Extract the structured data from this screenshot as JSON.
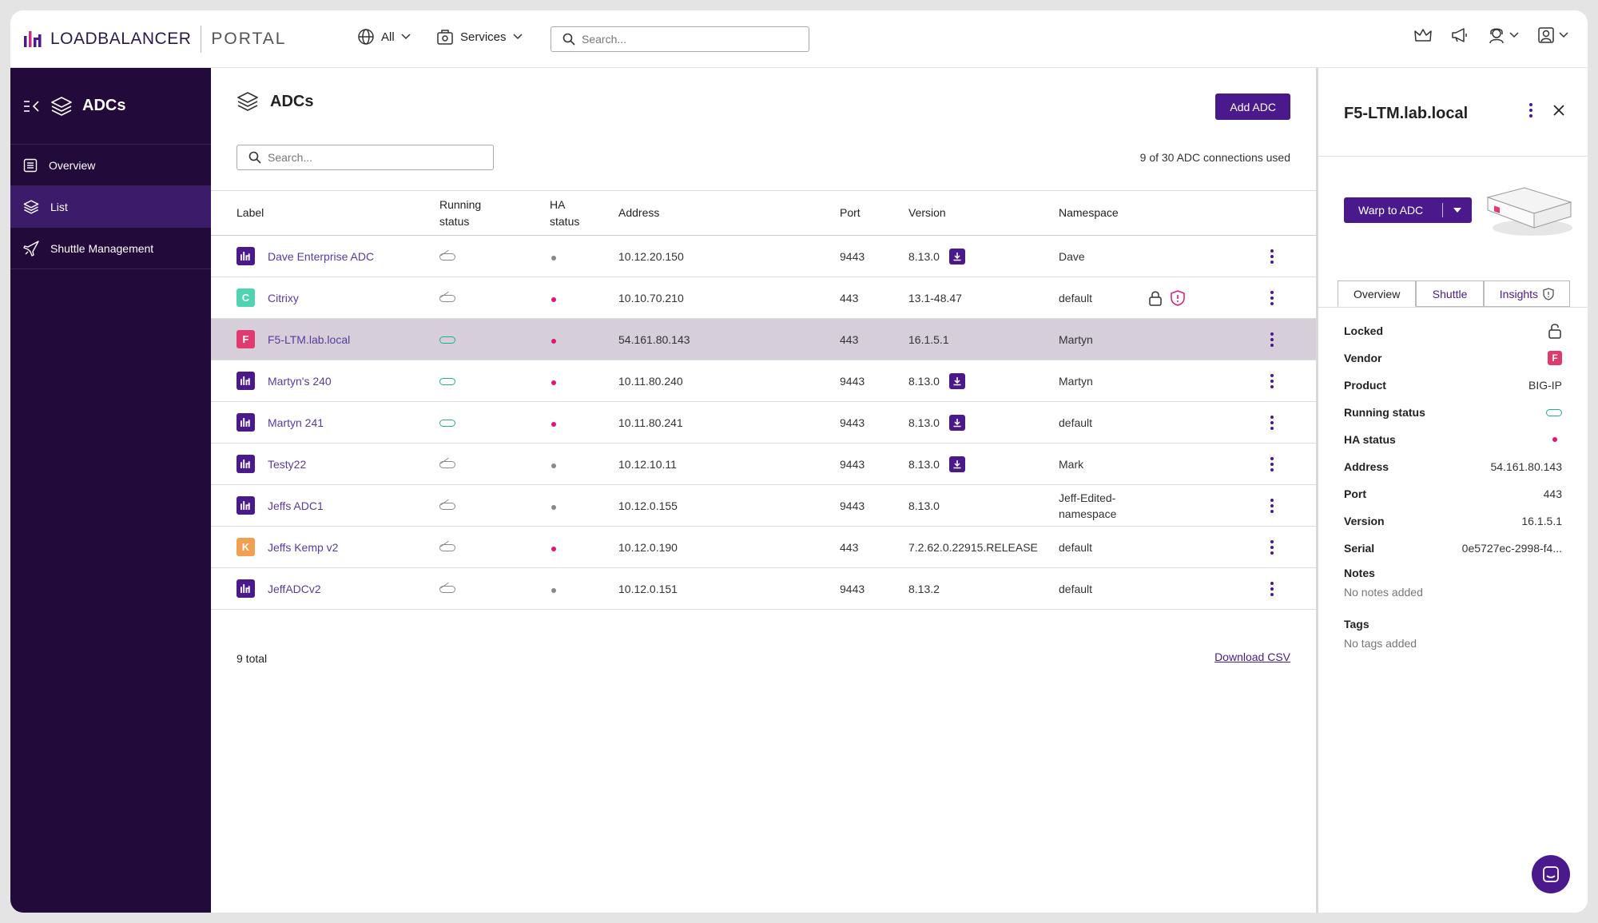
{
  "topbar": {
    "brand_name": "LOADBALANCER",
    "brand_portal": "PORTAL",
    "scope_all": "All",
    "scope_services": "Services",
    "search_placeholder": "Search..."
  },
  "sidebar": {
    "title": "ADCs",
    "items": [
      {
        "label": "Overview"
      },
      {
        "label": "List"
      },
      {
        "label": "Shuttle Management"
      }
    ]
  },
  "main": {
    "title": "ADCs",
    "add_button": "Add ADC",
    "search_placeholder": "Search...",
    "connections_used": "9 of 30 ADC connections used",
    "columns": {
      "label": "Label",
      "running_status_1": "Running",
      "running_status_2": "status",
      "ha_status_1": "HA",
      "ha_status_2": "status",
      "address": "Address",
      "port": "Port",
      "version": "Version",
      "namespace": "Namespace"
    },
    "rows": [
      {
        "vendor_letter": "",
        "label": "Dave Enterprise ADC",
        "address": "10.12.20.150",
        "port": "9443",
        "version": "8.13.0",
        "namespace": "Dave"
      },
      {
        "vendor_letter": "C",
        "label": "Citrixy",
        "address": "10.10.70.210",
        "port": "443",
        "version": "13.1-48.47",
        "namespace": "default"
      },
      {
        "vendor_letter": "F",
        "label": "F5-LTM.lab.local",
        "address": "54.161.80.143",
        "port": "443",
        "version": "16.1.5.1",
        "namespace": "Martyn"
      },
      {
        "vendor_letter": "",
        "label": "Martyn's 240",
        "address": "10.11.80.240",
        "port": "9443",
        "version": "8.13.0",
        "namespace": "Martyn"
      },
      {
        "vendor_letter": "",
        "label": "Martyn 241",
        "address": "10.11.80.241",
        "port": "9443",
        "version": "8.13.0",
        "namespace": "default"
      },
      {
        "vendor_letter": "",
        "label": "Testy22",
        "address": "10.12.10.11",
        "port": "9443",
        "version": "8.13.0",
        "namespace": "Mark"
      },
      {
        "vendor_letter": "",
        "label": "Jeffs ADC1",
        "address": "10.12.0.155",
        "port": "9443",
        "version": "8.13.0",
        "namespace": "Jeff-Edited-namespace"
      },
      {
        "vendor_letter": "K",
        "label": "Jeffs Kemp v2",
        "address": "10.12.0.190",
        "port": "443",
        "version": "7.2.62.0.22915.RELEASE",
        "namespace": "default"
      },
      {
        "vendor_letter": "",
        "label": "JeffADCv2",
        "address": "10.12.0.151",
        "port": "9443",
        "version": "8.13.2",
        "namespace": "default"
      }
    ],
    "total": "9 total",
    "download_csv": "Download CSV"
  },
  "panel": {
    "title": "F5-LTM.lab.local",
    "warp_button": "Warp to ADC",
    "tabs": [
      "Overview",
      "Shuttle",
      "Insights"
    ],
    "props": [
      {
        "key": "Locked",
        "value": ""
      },
      {
        "key": "Vendor",
        "value": "F"
      },
      {
        "key": "Product",
        "value": "BIG-IP"
      },
      {
        "key": "Running status",
        "value": ""
      },
      {
        "key": "HA status",
        "value": ""
      },
      {
        "key": "Address",
        "value": "54.161.80.143"
      },
      {
        "key": "Port",
        "value": "443"
      },
      {
        "key": "Version",
        "value": "16.1.5.1"
      },
      {
        "key": "Serial",
        "value": "0e5727ec-2998-f4..."
      }
    ],
    "notes_label": "Notes",
    "notes_value": "No notes added",
    "tags_label": "Tags",
    "tags_value": "No tags added"
  },
  "colors": {
    "brand_purple": "#4a1a8c",
    "sidebar_bg": "#220a3b",
    "status_green": "#1bb092",
    "ha_pink": "#e0157a",
    "ha_grey": "#888888",
    "vendor_citrix": "#4fd3b0",
    "vendor_f5": "#e03a6e",
    "vendor_kemp": "#f0a050",
    "selected_row": "#d6ced9"
  }
}
